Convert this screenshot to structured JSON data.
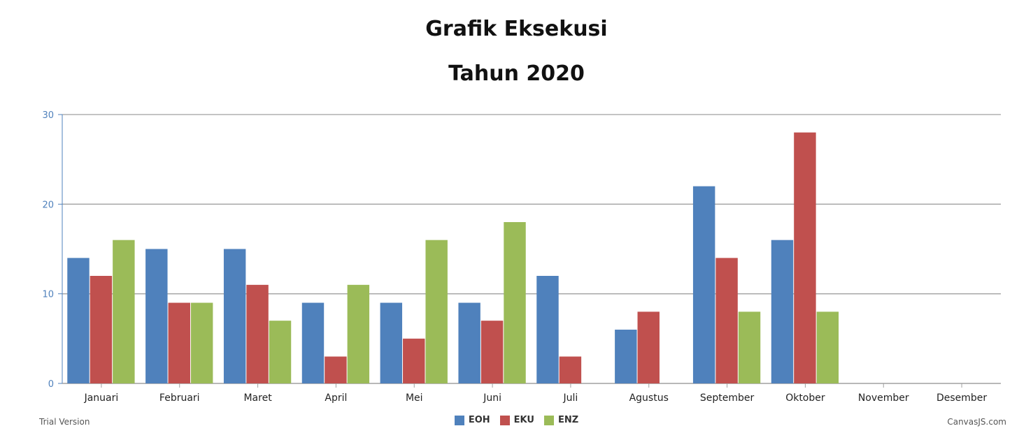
{
  "title": "Grafik Eksekusi",
  "subtitle": "Tahun 2020",
  "footer": {
    "trial_label": "Trial Version",
    "credit_label": "CanvasJS.com"
  },
  "colors": {
    "axis": "#4f81bc",
    "grid": "#a0a0a0",
    "tick_label_y": "#4f81bc",
    "tick_label_x": "#222222"
  },
  "chart_data": {
    "type": "bar",
    "categories": [
      "Januari",
      "Februari",
      "Maret",
      "April",
      "Mei",
      "Juni",
      "Juli",
      "Agustus",
      "September",
      "Oktober",
      "November",
      "Desember"
    ],
    "series": [
      {
        "name": "EOH",
        "color": "#4f81bc",
        "values": [
          14,
          15,
          15,
          9,
          9,
          9,
          12,
          6,
          22,
          16,
          0,
          0
        ]
      },
      {
        "name": "EKU",
        "color": "#c0504e",
        "values": [
          12,
          9,
          11,
          3,
          5,
          7,
          3,
          8,
          14,
          28,
          0,
          0
        ]
      },
      {
        "name": "ENZ",
        "color": "#9bbb58",
        "values": [
          16,
          9,
          7,
          11,
          16,
          18,
          0,
          0,
          8,
          8,
          0,
          0
        ]
      }
    ],
    "ylim": [
      0,
      30
    ],
    "yticks": [
      0,
      10,
      20,
      30
    ],
    "grid": true,
    "legend_position": "bottom-center"
  }
}
